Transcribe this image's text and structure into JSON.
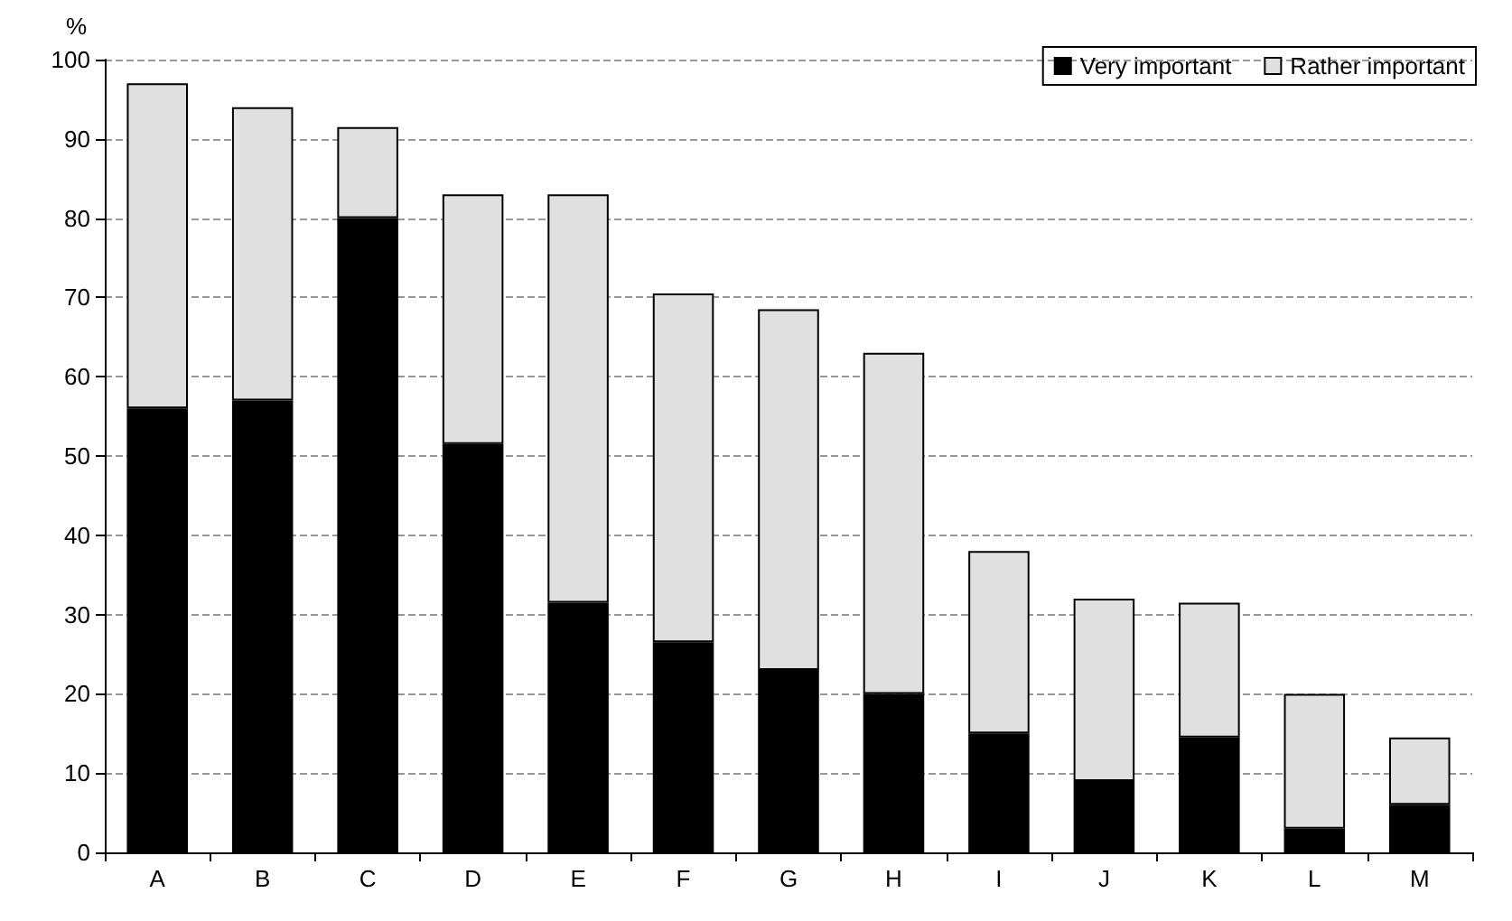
{
  "chart_data": {
    "type": "bar",
    "ylabel": "%",
    "stacked": true,
    "categories": [
      "A",
      "B",
      "C",
      "D",
      "E",
      "F",
      "G",
      "H",
      "I",
      "J",
      "K",
      "L",
      "M"
    ],
    "series": [
      {
        "name": "Very important",
        "color": "#000000",
        "values": [
          56,
          57,
          80,
          51.5,
          31.5,
          26.5,
          23,
          20,
          15,
          9,
          14.5,
          3,
          6
        ]
      },
      {
        "name": "Rather important",
        "color": "#e0e0e0",
        "values": [
          41,
          37,
          11.5,
          31.5,
          51.5,
          44,
          45.5,
          43,
          23,
          23,
          17,
          17,
          8.5
        ]
      }
    ],
    "ylim": [
      0,
      100
    ],
    "yticks": [
      0,
      10,
      20,
      30,
      40,
      50,
      60,
      70,
      80,
      90,
      100
    ],
    "grid": "y",
    "legend": "top right"
  }
}
